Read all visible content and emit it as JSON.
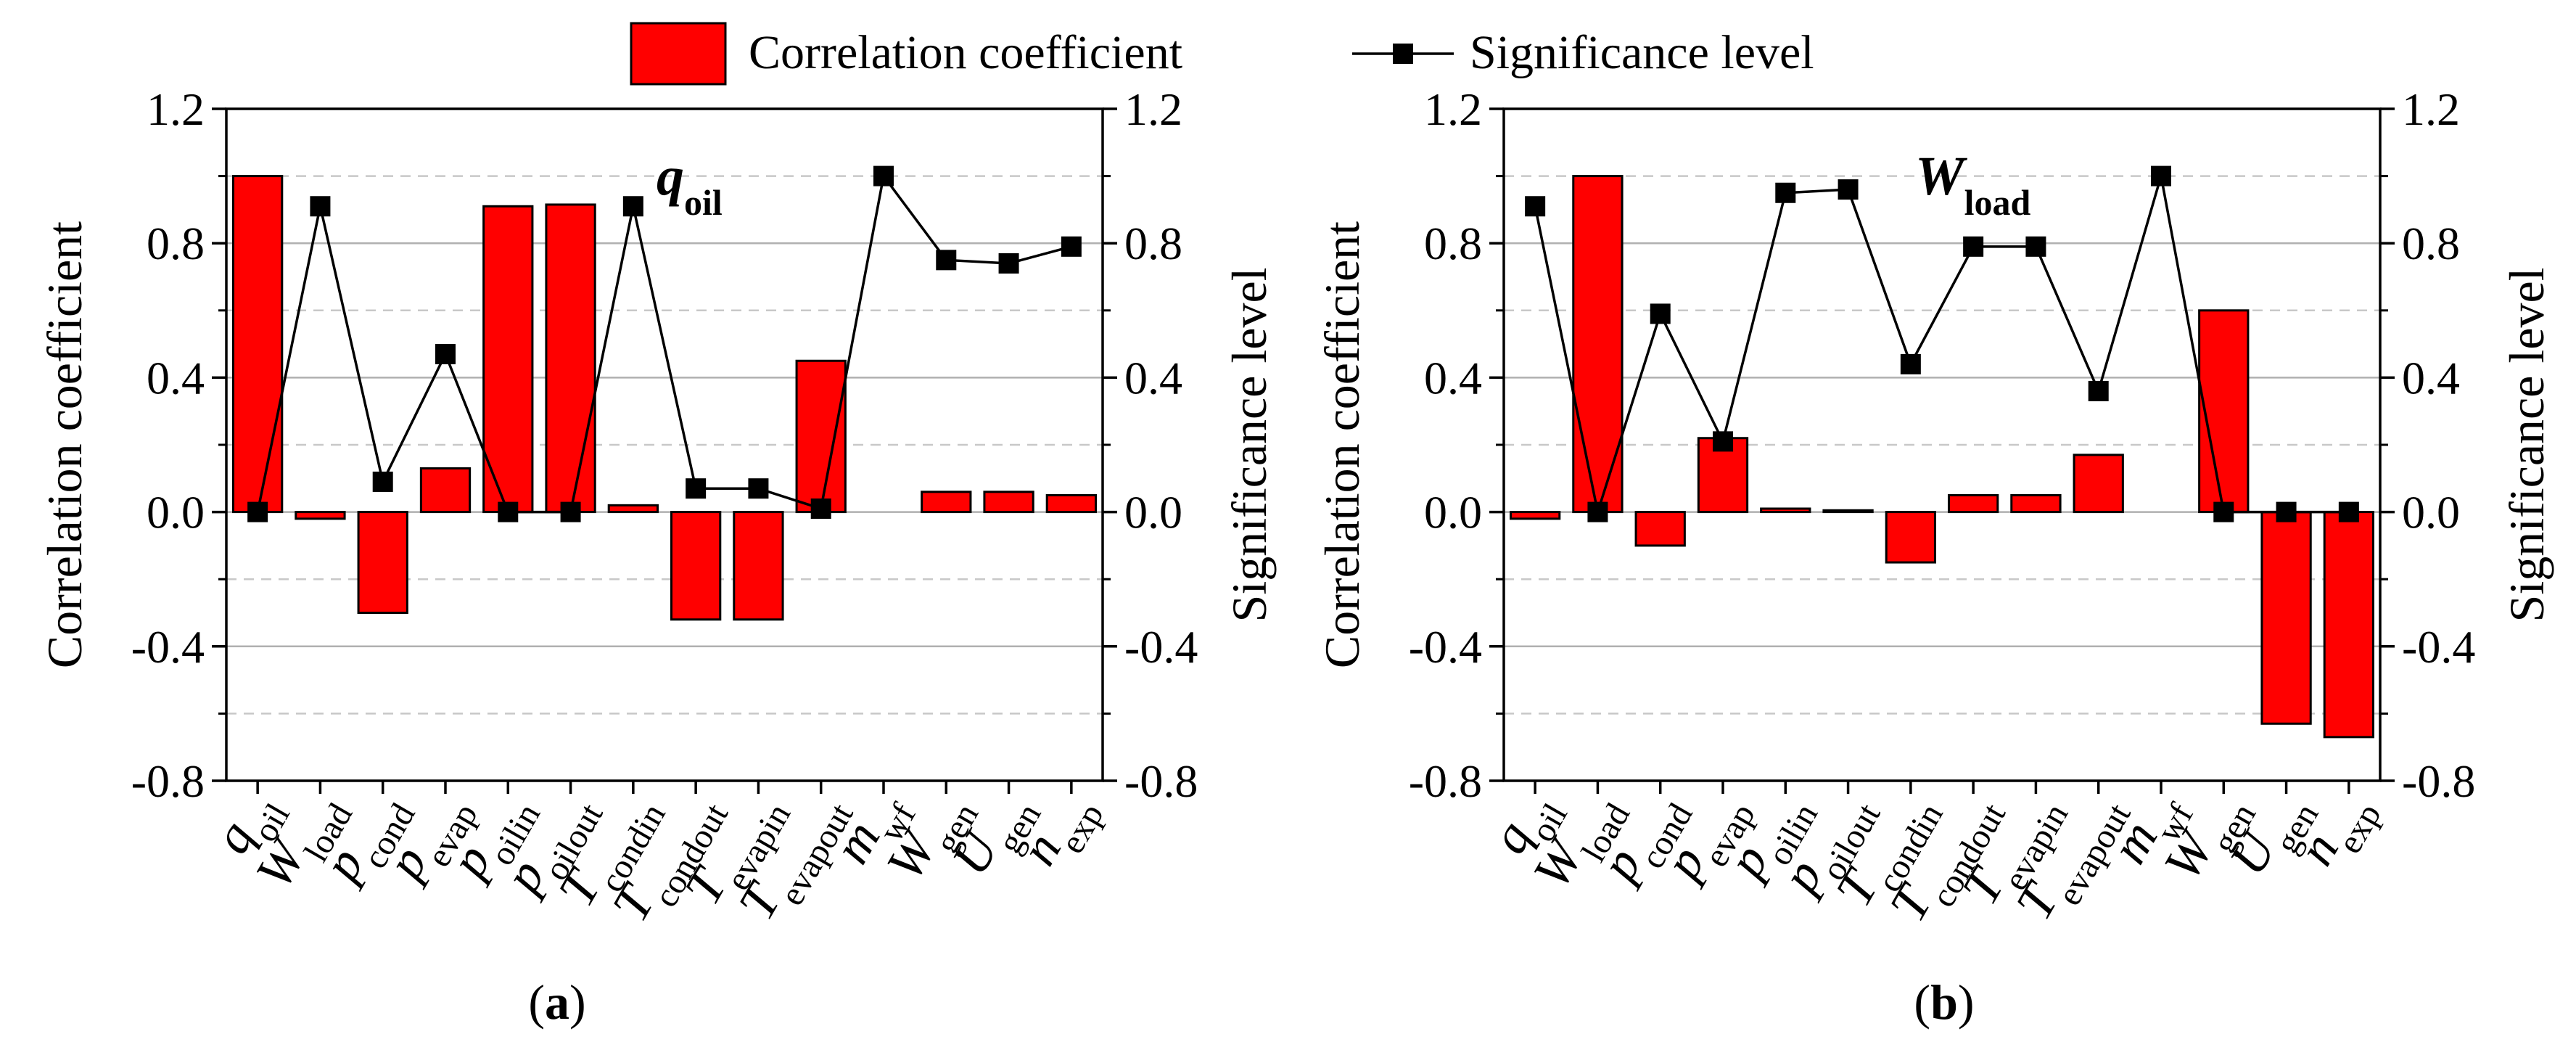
{
  "legend": {
    "bar_label": "Correlation coefficient",
    "line_label": "Significance level",
    "bar_color": "#ff0000",
    "line_color": "#000000",
    "placement": "top-center"
  },
  "categories": [
    {
      "base": "q",
      "sub": "oil"
    },
    {
      "base": "W",
      "sub": "load"
    },
    {
      "base": "p",
      "sub": "cond"
    },
    {
      "base": "p",
      "sub": "evap"
    },
    {
      "base": "p",
      "sub": "oilin"
    },
    {
      "base": "p",
      "sub": "oilout"
    },
    {
      "base": "T",
      "sub": "condin"
    },
    {
      "base": "T",
      "sub": "condout"
    },
    {
      "base": "T",
      "sub": "evapin"
    },
    {
      "base": "T",
      "sub": "evapout"
    },
    {
      "base": "m",
      "sub": "wf"
    },
    {
      "base": "W",
      "sub": "gen"
    },
    {
      "base": "U",
      "sub": "gen"
    },
    {
      "base": "n",
      "sub": "exp"
    }
  ],
  "chart_data": [
    {
      "type": "bar",
      "panel_label": "a",
      "annotation": {
        "base": "q",
        "sub": "oil"
      },
      "ylabel_left": "Correlation coefficient",
      "ylabel_right": "Significance level",
      "ylim": [
        -0.8,
        1.2
      ],
      "yticks": [
        "-0.8",
        "-0.4",
        "0.0",
        "0.4",
        "0.8",
        "1.2"
      ],
      "grid": true,
      "series": [
        {
          "kind": "bar",
          "values": [
            1.0,
            -0.02,
            -0.3,
            0.13,
            0.91,
            0.915,
            0.02,
            -0.32,
            -0.32,
            0.45,
            0.0,
            0.06,
            0.06,
            0.05
          ]
        },
        {
          "kind": "line",
          "values": [
            0.0,
            0.91,
            0.09,
            0.47,
            0.0,
            0.0,
            0.91,
            0.07,
            0.07,
            0.01,
            1.0,
            0.75,
            0.74,
            0.79
          ]
        }
      ]
    },
    {
      "type": "bar",
      "panel_label": "b",
      "annotation": {
        "base": "W",
        "sub": "load"
      },
      "ylabel_left": "Correlation coefficient",
      "ylabel_right": "Significance level",
      "ylim": [
        -0.8,
        1.2
      ],
      "yticks": [
        "-0.8",
        "-0.4",
        "0.0",
        "0.4",
        "0.8",
        "1.2"
      ],
      "grid": true,
      "series": [
        {
          "kind": "bar",
          "values": [
            -0.02,
            1.0,
            -0.1,
            0.22,
            0.01,
            0.005,
            -0.15,
            0.05,
            0.05,
            0.17,
            0.0,
            0.6,
            -0.63,
            -0.67
          ]
        },
        {
          "kind": "line",
          "values": [
            0.91,
            0.0,
            0.59,
            0.21,
            0.95,
            0.96,
            0.44,
            0.79,
            0.79,
            0.36,
            1.0,
            0.0,
            0.0,
            0.0
          ]
        }
      ]
    }
  ]
}
